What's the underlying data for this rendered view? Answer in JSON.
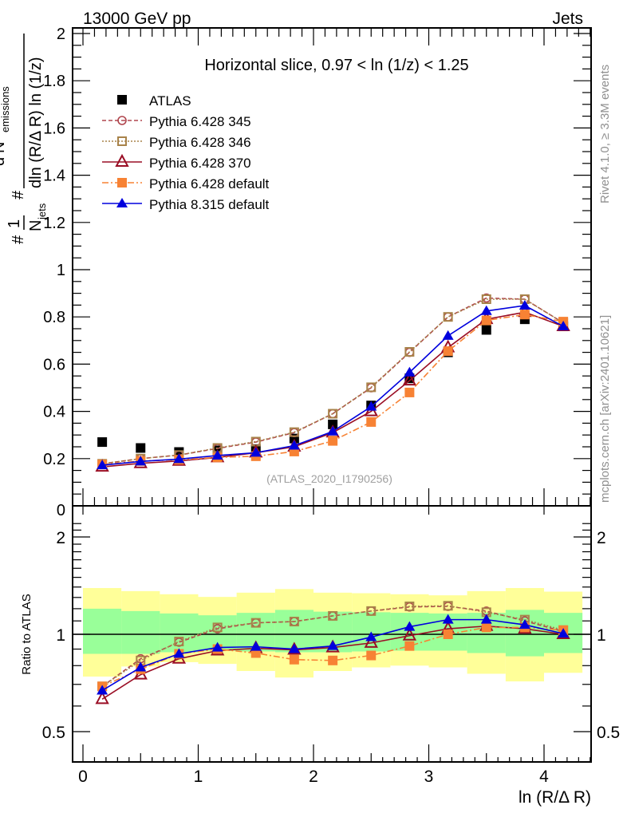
{
  "header": {
    "left": "13000 GeV pp",
    "right": "Jets"
  },
  "side_labels": {
    "rivet": "Rivet 4.1.0, ≥ 3.3M events",
    "mcplots": "mcplots.cern.ch [arXiv:2401.10621]"
  },
  "chart_data": [
    {
      "type": "line",
      "panel": "main",
      "title": "Horizontal slice, 0.97 < ln (1/z) < 1.25",
      "watermark": "(ATLAS_2020_I1790256)",
      "xlabel": "ln (R/Δ R)",
      "ylabel_parts": {
        "prefix": "#",
        "one": "1",
        "njets": "N",
        "njets_sub": "jets",
        "hash2": "#",
        "num": "d",
        "num_sup": "2",
        "num_N": " N",
        "num_sub": "emissions",
        "den": "dln (R/Δ R) ln (1/z)"
      },
      "xlim": [
        0,
        4.41
      ],
      "ylim": [
        0,
        2.0
      ],
      "y_ticks": [
        "0",
        "0.2",
        "0.4",
        "0.6",
        "0.8",
        "1",
        "1.2",
        "1.4",
        "1.6",
        "1.8",
        "2"
      ],
      "y_tick_values": [
        0,
        0.2,
        0.4,
        0.6,
        0.8,
        1.0,
        1.2,
        1.4,
        1.6,
        1.8,
        2.0
      ],
      "x": [
        0.167,
        0.5,
        0.833,
        1.167,
        1.5,
        1.833,
        2.167,
        2.5,
        2.833,
        3.167,
        3.5,
        3.833,
        4.167
      ],
      "legend_position": "top-left",
      "series": [
        {
          "name": "ATLAS",
          "color": "#000000",
          "marker": "square-filled",
          "line": "none",
          "values": [
            0.27,
            0.245,
            0.228,
            0.235,
            0.24,
            0.285,
            0.345,
            0.425,
            0.54,
            0.65,
            0.745,
            0.79,
            0.76
          ]
        },
        {
          "name": "Pythia 6.428 345",
          "color": "#b0464e",
          "marker": "circle-open",
          "line": "dashed",
          "values": [
            0.178,
            0.2,
            0.215,
            0.243,
            0.27,
            0.31,
            0.39,
            0.5,
            0.65,
            0.8,
            0.88,
            0.875,
            0.775
          ]
        },
        {
          "name": "Pythia 6.428 346",
          "color": "#a8834a",
          "marker": "square-open",
          "line": "dotted",
          "values": [
            0.178,
            0.2,
            0.215,
            0.245,
            0.272,
            0.312,
            0.39,
            0.502,
            0.652,
            0.8,
            0.875,
            0.875,
            0.775
          ]
        },
        {
          "name": "Pythia 6.428 370",
          "color": "#9a0e25",
          "marker": "triangle-open",
          "line": "solid",
          "values": [
            0.165,
            0.18,
            0.19,
            0.205,
            0.225,
            0.25,
            0.31,
            0.4,
            0.53,
            0.67,
            0.79,
            0.82,
            0.76
          ]
        },
        {
          "name": "Pythia 6.428 default",
          "color": "#f78234",
          "marker": "square-filled",
          "line": "dashdot",
          "values": [
            0.175,
            0.19,
            0.195,
            0.205,
            0.21,
            0.23,
            0.275,
            0.355,
            0.48,
            0.655,
            0.785,
            0.81,
            0.78
          ]
        },
        {
          "name": "Pythia 8.315 default",
          "color": "#0000dd",
          "marker": "triangle-filled",
          "line": "solid",
          "values": [
            0.172,
            0.188,
            0.198,
            0.213,
            0.225,
            0.255,
            0.315,
            0.42,
            0.565,
            0.72,
            0.825,
            0.848,
            0.76
          ]
        }
      ]
    },
    {
      "type": "line",
      "panel": "ratio",
      "xlabel": "ln (R/Δ R)",
      "ylabel": "Ratio to ATLAS",
      "yscale": "log",
      "ylim": [
        0.4,
        2.3
      ],
      "y_ticks": [
        "0.5",
        "1",
        "2"
      ],
      "y_tick_values": [
        0.5,
        1,
        2
      ],
      "x_ticks": [
        "0",
        "1",
        "2",
        "3",
        "4"
      ],
      "x_tick_values": [
        0,
        1,
        2,
        3,
        4
      ],
      "bin_edges": [
        0,
        0.333,
        0.667,
        1.0,
        1.333,
        1.667,
        2.0,
        2.333,
        2.667,
        3.0,
        3.333,
        3.667,
        4.0,
        4.333
      ],
      "bands": {
        "stat_color": "#99ff99",
        "total_color": "#ffff99",
        "inner_up": [
          1.2,
          1.18,
          1.16,
          1.145,
          1.165,
          1.19,
          1.175,
          1.17,
          1.165,
          1.16,
          1.165,
          1.19,
          1.165
        ],
        "inner_down": [
          0.87,
          0.87,
          0.88,
          0.89,
          0.885,
          0.88,
          0.88,
          0.885,
          0.89,
          0.89,
          0.875,
          0.855,
          0.875
        ],
        "outer_up": [
          1.39,
          1.36,
          1.33,
          1.305,
          1.345,
          1.38,
          1.345,
          1.34,
          1.33,
          1.32,
          1.36,
          1.39,
          1.355
        ],
        "outer_down": [
          0.74,
          0.795,
          0.82,
          0.81,
          0.77,
          0.735,
          0.77,
          0.79,
          0.8,
          0.79,
          0.755,
          0.715,
          0.76
        ]
      },
      "reference_line": 1.0,
      "series": [
        {
          "name": "Pythia 6.428 345",
          "values": [
            0.69,
            0.84,
            0.945,
            1.04,
            1.085,
            1.095,
            1.14,
            1.18,
            1.215,
            1.22,
            1.18,
            1.1,
            1.02
          ]
        },
        {
          "name": "Pythia 6.428 346",
          "values": [
            0.69,
            0.83,
            0.95,
            1.05,
            1.085,
            1.095,
            1.14,
            1.18,
            1.22,
            1.225,
            1.17,
            1.11,
            1.03
          ]
        },
        {
          "name": "Pythia 6.428 370",
          "values": [
            0.63,
            0.75,
            0.84,
            0.89,
            0.905,
            0.895,
            0.91,
            0.94,
            0.99,
            1.04,
            1.06,
            1.04,
            1.0
          ]
        },
        {
          "name": "Pythia 6.428 default",
          "values": [
            0.69,
            0.78,
            0.87,
            0.9,
            0.875,
            0.835,
            0.83,
            0.86,
            0.92,
            1.0,
            1.05,
            1.05,
            1.03
          ]
        },
        {
          "name": "Pythia 8.315 default",
          "values": [
            0.67,
            0.79,
            0.87,
            0.91,
            0.915,
            0.9,
            0.92,
            0.98,
            1.055,
            1.11,
            1.11,
            1.07,
            1.005
          ]
        }
      ]
    }
  ]
}
